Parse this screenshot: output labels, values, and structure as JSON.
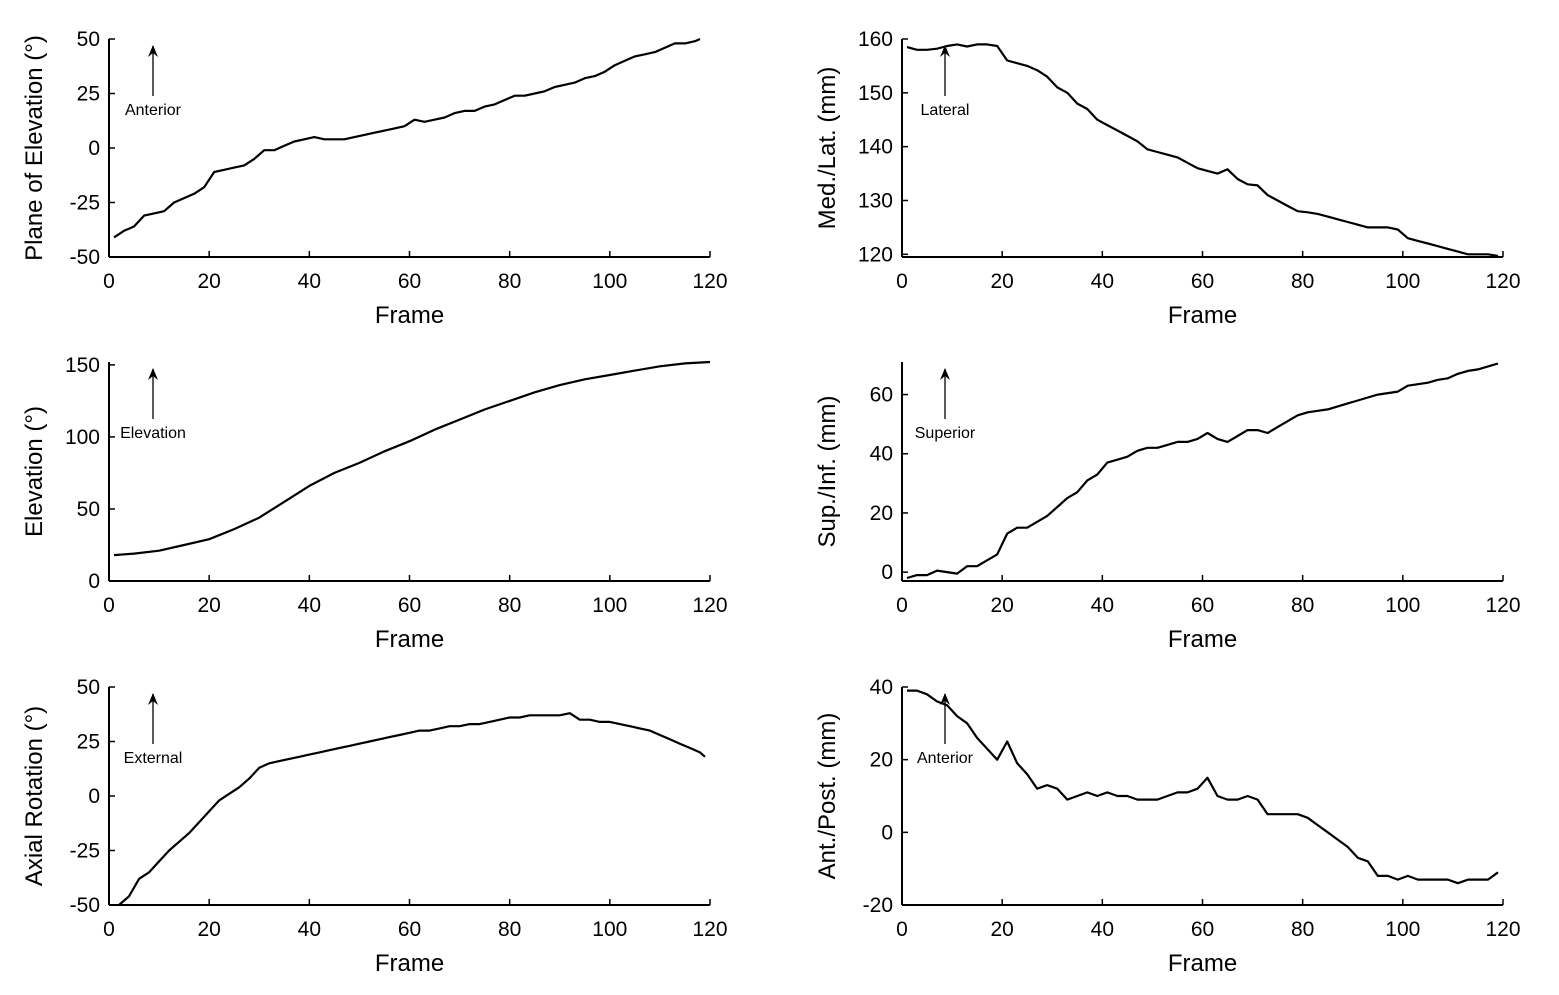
{
  "chart_data": [
    {
      "type": "line",
      "panel": "top-left",
      "xlabel": "Frame",
      "ylabel": "Plane of Elevation (°)",
      "xlim": [
        0,
        120
      ],
      "ylim": [
        -50,
        50
      ],
      "xticks": [
        "0",
        "20",
        "40",
        "60",
        "80",
        "100",
        "120"
      ],
      "yticks": [
        "50",
        "25",
        "0",
        "-25",
        "-50"
      ],
      "annotation": "Anterior",
      "series": [
        {
          "name": "Plane of Elevation",
          "x": [
            1,
            3,
            5,
            7,
            9,
            11,
            13,
            15,
            17,
            19,
            21,
            23,
            25,
            27,
            29,
            31,
            33,
            35,
            37,
            39,
            41,
            43,
            45,
            47,
            49,
            51,
            53,
            55,
            57,
            59,
            61,
            63,
            65,
            67,
            69,
            71,
            73,
            75,
            77,
            79,
            81,
            83,
            85,
            87,
            89,
            91,
            93,
            95,
            97,
            99,
            101,
            103,
            105,
            107,
            109,
            111,
            113,
            115,
            117,
            118
          ],
          "values": [
            -41,
            -38,
            -36,
            -31,
            -30,
            -29,
            -25,
            -23,
            -21,
            -18,
            -11,
            -10,
            -9,
            -8,
            -5,
            -1,
            -1,
            1,
            3,
            4,
            5,
            4,
            4,
            4,
            5,
            6,
            7,
            8,
            9,
            10,
            13,
            12,
            13,
            14,
            16,
            17,
            17,
            19,
            20,
            22,
            24,
            24,
            25,
            26,
            28,
            29,
            30,
            32,
            33,
            35,
            38,
            40,
            42,
            43,
            44,
            46,
            48,
            48,
            49,
            50
          ]
        }
      ]
    },
    {
      "type": "line",
      "panel": "top-right",
      "xlabel": "Frame",
      "ylabel": "Med./Lat. (mm)",
      "xlim": [
        0,
        120
      ],
      "ylim": [
        119.5,
        160
      ],
      "xticks": [
        "0",
        "20",
        "40",
        "60",
        "80",
        "100",
        "120"
      ],
      "yticks": [
        "160",
        "150",
        "140",
        "130",
        "120"
      ],
      "annotation": "Lateral",
      "series": [
        {
          "name": "Med./Lat.",
          "x": [
            1,
            3,
            5,
            7,
            9,
            11,
            13,
            15,
            17,
            19,
            21,
            23,
            25,
            27,
            29,
            31,
            33,
            35,
            37,
            39,
            41,
            43,
            45,
            47,
            49,
            51,
            53,
            55,
            57,
            59,
            61,
            63,
            65,
            67,
            69,
            71,
            73,
            75,
            77,
            79,
            81,
            83,
            85,
            87,
            89,
            91,
            93,
            95,
            97,
            99,
            101,
            103,
            105,
            107,
            109,
            111,
            113,
            115,
            117,
            119
          ],
          "values": [
            158.5,
            158,
            158,
            158.2,
            158.7,
            159,
            158.6,
            159,
            159,
            158.7,
            156,
            155.5,
            155,
            154.2,
            153,
            151,
            150,
            148,
            147,
            145,
            144,
            143,
            142,
            141,
            139.5,
            139,
            138.5,
            138,
            137,
            136,
            135.5,
            135,
            135.8,
            134,
            133,
            132.8,
            131,
            130,
            129,
            128,
            127.8,
            127.5,
            127,
            126.5,
            126,
            125.5,
            125,
            125,
            125,
            124.6,
            123,
            122.5,
            122,
            121.5,
            121,
            120.5,
            120,
            120,
            120,
            119.7
          ]
        }
      ]
    },
    {
      "type": "line",
      "panel": "middle-left",
      "xlabel": "Frame",
      "ylabel": "Elevation (°)",
      "xlim": [
        0,
        120
      ],
      "ylim": [
        0,
        152
      ],
      "xticks": [
        "0",
        "20",
        "40",
        "60",
        "80",
        "100",
        "120"
      ],
      "yticks": [
        "150",
        "100",
        "50",
        "0"
      ],
      "annotation": "Elevation",
      "series": [
        {
          "name": "Elevation",
          "x": [
            1,
            5,
            10,
            15,
            20,
            25,
            30,
            35,
            40,
            45,
            50,
            55,
            60,
            65,
            70,
            75,
            80,
            85,
            90,
            95,
            100,
            105,
            110,
            115,
            120
          ],
          "values": [
            18,
            19,
            21,
            25,
            29,
            36,
            44,
            55,
            66,
            75,
            82,
            90,
            97,
            105,
            112,
            119,
            125,
            131,
            136,
            140,
            143,
            146,
            149,
            151,
            152
          ]
        }
      ]
    },
    {
      "type": "line",
      "panel": "middle-right",
      "xlabel": "Frame",
      "ylabel": "Sup./Inf. (mm)",
      "xlim": [
        0,
        120
      ],
      "ylim": [
        -3,
        71
      ],
      "xticks": [
        "0",
        "20",
        "40",
        "60",
        "80",
        "100",
        "120"
      ],
      "yticks": [
        "60",
        "40",
        "20",
        "0"
      ],
      "annotation": "Superior",
      "series": [
        {
          "name": "Sup./Inf.",
          "x": [
            1,
            3,
            5,
            7,
            9,
            11,
            13,
            15,
            17,
            19,
            21,
            23,
            25,
            27,
            29,
            31,
            33,
            35,
            37,
            39,
            41,
            43,
            45,
            47,
            49,
            51,
            53,
            55,
            57,
            59,
            61,
            63,
            65,
            67,
            69,
            71,
            73,
            75,
            77,
            79,
            81,
            83,
            85,
            87,
            89,
            91,
            93,
            95,
            97,
            99,
            101,
            103,
            105,
            107,
            109,
            111,
            113,
            115,
            117,
            119
          ],
          "values": [
            -2,
            -1,
            -1,
            0.5,
            0,
            -0.5,
            2,
            2,
            4,
            6,
            13,
            15,
            15,
            17,
            19,
            22,
            25,
            27,
            31,
            33,
            37,
            38,
            39,
            41,
            42,
            42,
            43,
            44,
            44,
            45,
            47,
            45,
            44,
            46,
            48,
            48,
            47,
            49,
            51,
            53,
            54,
            54.5,
            55,
            56,
            57,
            58,
            59,
            60,
            60.5,
            61,
            63,
            63.5,
            64,
            65,
            65.5,
            67,
            68,
            68.5,
            69.5,
            70.5
          ]
        }
      ]
    },
    {
      "type": "line",
      "panel": "bottom-left",
      "xlabel": "Frame",
      "ylabel": "Axial Rotation (°)",
      "xlim": [
        0,
        120
      ],
      "ylim": [
        -50,
        50
      ],
      "xticks": [
        "0",
        "20",
        "40",
        "60",
        "80",
        "100",
        "120"
      ],
      "yticks": [
        "50",
        "25",
        "0",
        "-25",
        "-50"
      ],
      "annotation": "External",
      "series": [
        {
          "name": "Axial Rotation",
          "x": [
            2,
            4,
            6,
            8,
            10,
            12,
            14,
            16,
            18,
            20,
            22,
            24,
            26,
            28,
            30,
            32,
            34,
            36,
            38,
            40,
            42,
            44,
            46,
            48,
            50,
            52,
            54,
            56,
            58,
            60,
            62,
            64,
            66,
            68,
            70,
            72,
            74,
            76,
            78,
            80,
            82,
            84,
            86,
            88,
            90,
            92,
            94,
            96,
            98,
            100,
            102,
            104,
            106,
            108,
            110,
            112,
            114,
            116,
            118,
            119
          ],
          "values": [
            -50,
            -46,
            -38,
            -35,
            -30,
            -25,
            -21,
            -17,
            -12,
            -7,
            -2,
            1,
            4,
            8,
            13,
            15,
            16,
            17,
            18,
            19,
            20,
            21,
            22,
            23,
            24,
            25,
            26,
            27,
            28,
            29,
            30,
            30,
            31,
            32,
            32,
            33,
            33,
            34,
            35,
            36,
            36,
            37,
            37,
            37,
            37,
            38,
            35,
            35,
            34,
            34,
            33,
            32,
            31,
            30,
            28,
            26,
            24,
            22,
            20,
            18
          ]
        }
      ]
    },
    {
      "type": "line",
      "panel": "bottom-right",
      "xlabel": "Frame",
      "ylabel": "Ant./Post. (mm)",
      "xlim": [
        0,
        120
      ],
      "ylim": [
        -20,
        40
      ],
      "xticks": [
        "0",
        "20",
        "40",
        "60",
        "80",
        "100",
        "120"
      ],
      "yticks": [
        "40",
        "20",
        "0",
        "-20"
      ],
      "annotation": "Anterior",
      "series": [
        {
          "name": "Ant./Post.",
          "x": [
            1,
            3,
            5,
            7,
            9,
            11,
            13,
            15,
            17,
            19,
            21,
            23,
            25,
            27,
            29,
            31,
            33,
            35,
            37,
            39,
            41,
            43,
            45,
            47,
            49,
            51,
            53,
            55,
            57,
            59,
            61,
            63,
            65,
            67,
            69,
            71,
            73,
            75,
            77,
            79,
            81,
            83,
            85,
            87,
            89,
            91,
            93,
            95,
            97,
            99,
            101,
            103,
            105,
            107,
            109,
            111,
            113,
            115,
            117,
            119
          ],
          "values": [
            39,
            39,
            38,
            36,
            35,
            32,
            30,
            26,
            23,
            20,
            25,
            19,
            16,
            12,
            13,
            12,
            9,
            10,
            11,
            10,
            11,
            10,
            10,
            9,
            9,
            9,
            10,
            11,
            11,
            12,
            15,
            10,
            9,
            9,
            10,
            9,
            5,
            5,
            5,
            5,
            4,
            2,
            0,
            -2,
            -4,
            -7,
            -8,
            -12,
            -12,
            -13,
            -12,
            -13,
            -13,
            -13,
            -13,
            -14,
            -13,
            -13,
            -13,
            -11
          ]
        }
      ]
    }
  ]
}
